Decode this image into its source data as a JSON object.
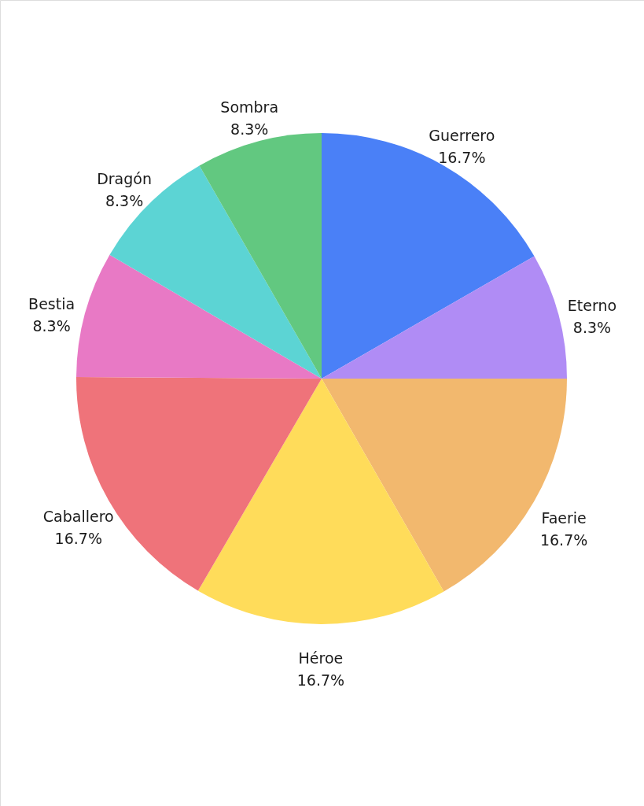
{
  "chart_data": {
    "type": "pie",
    "categories": [
      "Guerrero",
      "Eterno",
      "Faerie",
      "Héroe",
      "Caballero",
      "Bestia",
      "Dragón",
      "Sombra"
    ],
    "values": [
      16.7,
      8.3,
      16.7,
      16.7,
      16.7,
      8.3,
      8.3,
      8.3
    ],
    "value_labels": [
      "16.7%",
      "8.3%",
      "16.7%",
      "16.7%",
      "16.7%",
      "8.3%",
      "8.3%",
      "8.3%"
    ],
    "colors": [
      "#4a80f7",
      "#b08cf5",
      "#f2b86e",
      "#ffdc5a",
      "#ef737a",
      "#e879c5",
      "#5cd4d4",
      "#62c880"
    ]
  }
}
